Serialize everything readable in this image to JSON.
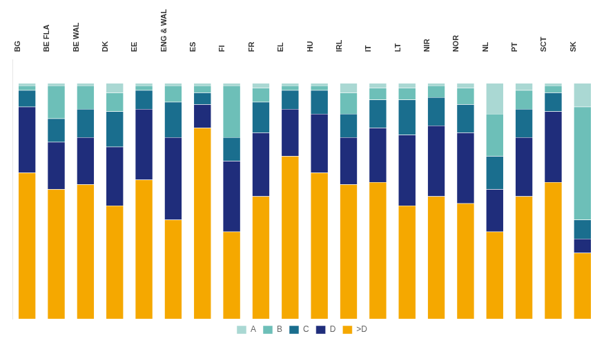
{
  "chart_data": {
    "type": "bar",
    "stacked": true,
    "categories": [
      "BG",
      "BE FLA",
      "BE WAL",
      "DK",
      "EE",
      "ENG & WAL",
      "ES",
      "FI",
      "FR",
      "EL",
      "HU",
      "IRL",
      "IT",
      "LT",
      "NIR",
      "NOR",
      "NL",
      "PT",
      "SCT",
      "SK"
    ],
    "series": [
      {
        "name": ">D",
        "color": "#f5a800",
        "values": [
          62,
          55,
          57,
          48,
          59,
          42,
          81,
          37,
          52,
          69,
          62,
          57,
          58,
          48,
          52,
          49,
          37,
          52,
          58,
          28
        ]
      },
      {
        "name": "D",
        "color": "#1f2d7b",
        "values": [
          28,
          20,
          20,
          25,
          30,
          35,
          10,
          30,
          27,
          20,
          25,
          20,
          23,
          30,
          30,
          30,
          18,
          25,
          30,
          6
        ]
      },
      {
        "name": "C",
        "color": "#1a6e8e",
        "values": [
          7,
          10,
          12,
          15,
          8,
          15,
          5,
          10,
          13,
          8,
          10,
          10,
          12,
          15,
          12,
          12,
          14,
          12,
          8,
          8
        ]
      },
      {
        "name": "B",
        "color": "#6dbfb8",
        "values": [
          2,
          14,
          10,
          8,
          2,
          7,
          3,
          22,
          6,
          2,
          2,
          9,
          5,
          5,
          5,
          7,
          18,
          8,
          3,
          48
        ]
      },
      {
        "name": "A",
        "color": "#aad8d3",
        "values": [
          1,
          1,
          1,
          4,
          1,
          1,
          1,
          1,
          2,
          1,
          1,
          4,
          2,
          2,
          1,
          2,
          13,
          3,
          1,
          10
        ]
      }
    ],
    "ylim": [
      0,
      110
    ],
    "grid": false,
    "legend": "bottom",
    "tick_labels": "x"
  }
}
